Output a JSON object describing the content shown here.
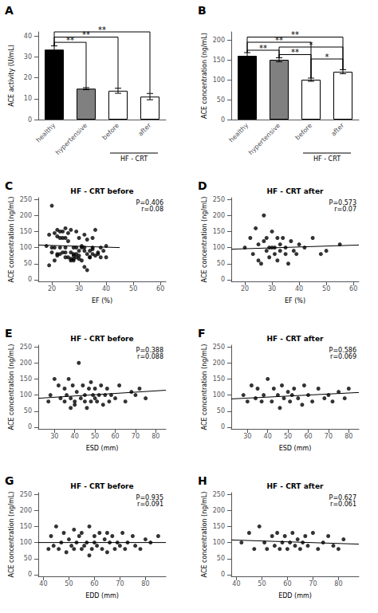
{
  "chart_data": [
    {
      "type": "bar",
      "categories": [
        "healthy",
        "hypertensive",
        "before",
        "after"
      ],
      "values": [
        33.5,
        14.8,
        13.8,
        11.0
      ],
      "errors": [
        1.8,
        0.5,
        1.2,
        1.5
      ],
      "colors": [
        "black",
        "#808080",
        "white",
        "white"
      ],
      "ylabel": "ACE activity (U/mL)",
      "ylim": [
        0,
        42
      ],
      "yticks": [
        0,
        10,
        20,
        30,
        40
      ],
      "grid": false,
      "annotations": [
        {
          "text": "A"
        },
        {
          "text": "HF - CRT",
          "from": "before",
          "to": "after"
        },
        {
          "text": "**",
          "from": "healthy",
          "to": "hypertensive",
          "y": 37
        },
        {
          "text": "**",
          "from": "healthy",
          "to": "before",
          "y": 39.5
        },
        {
          "text": "**",
          "from": "healthy",
          "to": "after",
          "y": 42
        }
      ]
    },
    {
      "type": "bar",
      "categories": [
        "healthy",
        "hypertensive",
        "before",
        "after"
      ],
      "values": [
        160,
        150,
        100,
        120
      ],
      "errors": [
        8,
        5,
        4,
        5
      ],
      "colors": [
        "black",
        "#808080",
        "white",
        "white"
      ],
      "ylabel": "ACE concentration (ng/mL)",
      "ylim": [
        0,
        220
      ],
      "yticks": [
        0,
        50,
        100,
        150,
        200
      ],
      "grid": false,
      "annotations": [
        {
          "text": "B"
        },
        {
          "text": "HF - CRT",
          "from": "before",
          "to": "after"
        },
        {
          "text": "*",
          "from": "before",
          "to": "after",
          "y": 152
        },
        {
          "text": "**",
          "from": "hypertensive",
          "to": "before",
          "y": 163
        },
        {
          "text": "**",
          "from": "healthy",
          "to": "hypertensive",
          "y": 174
        },
        {
          "text": "*",
          "from": "hypertensive",
          "to": "after",
          "y": 182
        },
        {
          "text": "**",
          "from": "healthy",
          "to": "before",
          "y": 194
        },
        {
          "text": "**",
          "from": "healthy",
          "to": "after",
          "y": 207
        }
      ]
    },
    {
      "type": "scatter",
      "title": "HF - CRT before",
      "xlabel": "EF (%)",
      "ylabel": "ACE concentration (ng/mL)",
      "xlim": [
        15,
        62
      ],
      "ylim": [
        -5,
        255
      ],
      "xticks": [
        20,
        30,
        40,
        50,
        60
      ],
      "yticks": [
        0,
        50,
        100,
        150,
        200,
        250
      ],
      "grid": false,
      "series": [
        {
          "type": "scatter",
          "color": "black",
          "x": [
            18,
            19,
            19,
            20,
            20,
            20,
            21,
            21,
            21,
            22,
            22,
            22,
            22,
            23,
            23,
            23,
            23,
            24,
            24,
            24,
            25,
            25,
            25,
            25,
            25,
            26,
            26,
            26,
            27,
            27,
            27,
            27,
            28,
            28,
            28,
            28,
            28,
            29,
            29,
            29,
            29,
            30,
            30,
            30,
            30,
            31,
            31,
            31,
            32,
            32,
            32,
            32,
            33,
            33,
            33,
            34,
            34,
            34,
            35,
            35,
            35,
            35,
            36,
            36,
            37,
            37,
            38,
            38,
            39,
            40,
            40
          ],
          "values": [
            105,
            45,
            140,
            100,
            85,
            230,
            100,
            60,
            145,
            135,
            155,
            80,
            75,
            80,
            150,
            130,
            100,
            85,
            150,
            130,
            70,
            130,
            100,
            160,
            85,
            70,
            120,
            145,
            85,
            60,
            65,
            155,
            60,
            65,
            75,
            100,
            80,
            70,
            80,
            100,
            150,
            90,
            130,
            65,
            75,
            100,
            105,
            60,
            40,
            90,
            100,
            140,
            30,
            80,
            125,
            90,
            70,
            70,
            80,
            95,
            130,
            100,
            75,
            155,
            80,
            85,
            100,
            70,
            90,
            105,
            70
          ]
        },
        {
          "type": "line",
          "color": "black",
          "x": [
            15,
            45
          ],
          "values": [
            108,
            100
          ]
        }
      ],
      "annotations": [
        {
          "text": "C"
        },
        {
          "text": "P=0.406"
        },
        {
          "text": "r=0.08"
        }
      ]
    },
    {
      "type": "scatter",
      "title": "HF - CRT after",
      "xlabel": "EF (%)",
      "ylabel": "ACE concentration (ng/mL)",
      "xlim": [
        15,
        62
      ],
      "ylim": [
        -5,
        255
      ],
      "xticks": [
        20,
        30,
        40,
        50,
        60
      ],
      "yticks": [
        0,
        50,
        100,
        150,
        200,
        250
      ],
      "grid": false,
      "series": [
        {
          "type": "scatter",
          "color": "black",
          "x": [
            20,
            22,
            23,
            24,
            25,
            25,
            26,
            27,
            27,
            28,
            28,
            29,
            29,
            30,
            30,
            31,
            31,
            32,
            32,
            33,
            33,
            34,
            35,
            35,
            36,
            37,
            38,
            39,
            40,
            42,
            45,
            48,
            50,
            55
          ],
          "values": [
            100,
            130,
            80,
            160,
            110,
            60,
            50,
            120,
            200,
            90,
            130,
            100,
            70,
            100,
            150,
            80,
            100,
            60,
            130,
            90,
            110,
            130,
            80,
            100,
            50,
            120,
            90,
            80,
            110,
            100,
            130,
            80,
            90,
            110
          ]
        },
        {
          "type": "line",
          "color": "black",
          "x": [
            15,
            62
          ],
          "values": [
            95,
            108
          ]
        }
      ],
      "annotations": [
        {
          "text": "D"
        },
        {
          "text": "P=0.573"
        },
        {
          "text": "r=0.07"
        }
      ]
    },
    {
      "type": "scatter",
      "title": "HF - CRT before",
      "xlabel": "ESD (mm)",
      "ylabel": "ACE concentration (ng/mL)",
      "xlim": [
        22,
        85
      ],
      "ylim": [
        -5,
        255
      ],
      "xticks": [
        30,
        40,
        50,
        60,
        70,
        80
      ],
      "yticks": [
        0,
        50,
        100,
        150,
        200,
        250
      ],
      "grid": false,
      "series": [
        {
          "type": "scatter",
          "color": "black",
          "x": [
            27,
            28,
            30,
            32,
            33,
            35,
            35,
            36,
            37,
            38,
            38,
            39,
            40,
            40,
            41,
            42,
            43,
            44,
            45,
            45,
            46,
            47,
            48,
            48,
            49,
            50,
            50,
            51,
            52,
            53,
            54,
            55,
            56,
            57,
            58,
            60,
            62,
            65,
            68,
            70,
            72,
            75
          ],
          "values": [
            80,
            100,
            150,
            130,
            90,
            80,
            120,
            100,
            150,
            60,
            90,
            130,
            80,
            70,
            110,
            200,
            90,
            130,
            80,
            100,
            60,
            120,
            80,
            140,
            100,
            90,
            120,
            80,
            100,
            130,
            70,
            100,
            120,
            80,
            100,
            90,
            130,
            80,
            110,
            100,
            120,
            90
          ]
        },
        {
          "type": "line",
          "color": "black",
          "x": [
            22,
            85
          ],
          "values": [
            90,
            115
          ]
        }
      ],
      "annotations": [
        {
          "text": "E"
        },
        {
          "text": "P=0.388"
        },
        {
          "text": "r=0.088"
        }
      ]
    },
    {
      "type": "scatter",
      "title": "HF - CRT after",
      "xlabel": "ESD (mm)",
      "ylabel": "ACE concentration (ng/mL)",
      "xlim": [
        22,
        85
      ],
      "ylim": [
        -5,
        255
      ],
      "xticks": [
        30,
        40,
        50,
        60,
        70,
        80
      ],
      "yticks": [
        0,
        50,
        100,
        150,
        200,
        250
      ],
      "grid": false,
      "series": [
        {
          "type": "scatter",
          "color": "black",
          "x": [
            28,
            30,
            32,
            34,
            35,
            37,
            38,
            40,
            42,
            43,
            45,
            46,
            47,
            48,
            50,
            51,
            52,
            53,
            55,
            57,
            58,
            60,
            62,
            65,
            68,
            70,
            72,
            75,
            78,
            80
          ],
          "values": [
            100,
            80,
            130,
            90,
            120,
            80,
            100,
            150,
            80,
            120,
            100,
            60,
            130,
            90,
            110,
            80,
            100,
            120,
            90,
            70,
            130,
            100,
            80,
            120,
            90,
            100,
            80,
            110,
            90,
            120
          ]
        },
        {
          "type": "line",
          "color": "black",
          "x": [
            22,
            85
          ],
          "values": [
            88,
            108
          ]
        }
      ],
      "annotations": [
        {
          "text": "F"
        },
        {
          "text": "P=0.586"
        },
        {
          "text": "r=0.069"
        }
      ]
    },
    {
      "type": "scatter",
      "title": "HF - CRT before",
      "xlabel": "EDD (mm)",
      "ylabel": "ACE concentration (ng/mL)",
      "xlim": [
        38,
        88
      ],
      "ylim": [
        -5,
        255
      ],
      "xticks": [
        40,
        50,
        60,
        70,
        80
      ],
      "yticks": [
        0,
        50,
        100,
        150,
        200,
        250
      ],
      "grid": false,
      "series": [
        {
          "type": "scatter",
          "color": "black",
          "x": [
            42,
            43,
            44,
            45,
            46,
            47,
            48,
            49,
            50,
            51,
            52,
            52,
            53,
            54,
            55,
            55,
            56,
            57,
            58,
            58,
            59,
            60,
            60,
            61,
            62,
            63,
            64,
            65,
            65,
            66,
            67,
            68,
            69,
            70,
            71,
            72,
            73,
            75,
            76,
            78,
            80,
            82,
            85
          ],
          "values": [
            80,
            120,
            90,
            150,
            80,
            100,
            130,
            70,
            110,
            90,
            140,
            80,
            100,
            120,
            80,
            130,
            90,
            100,
            60,
            150,
            80,
            120,
            100,
            90,
            130,
            80,
            110,
            70,
            130,
            100,
            120,
            80,
            100,
            90,
            130,
            80,
            100,
            120,
            90,
            80,
            110,
            100,
            120
          ]
        },
        {
          "type": "line",
          "color": "black",
          "x": [
            38,
            88
          ],
          "values": [
            100,
            100
          ]
        }
      ],
      "annotations": [
        {
          "text": "G"
        },
        {
          "text": "P=0.935"
        },
        {
          "text": "r=0.091"
        }
      ]
    },
    {
      "type": "scatter",
      "title": "HF - CRT after",
      "xlabel": "EDD (mm)",
      "ylabel": "ACE concentration (ng/mL)",
      "xlim": [
        38,
        88
      ],
      "ylim": [
        -5,
        255
      ],
      "xticks": [
        40,
        50,
        60,
        70,
        80
      ],
      "yticks": [
        0,
        50,
        100,
        150,
        200,
        250
      ],
      "grid": false,
      "series": [
        {
          "type": "scatter",
          "color": "black",
          "x": [
            42,
            45,
            47,
            49,
            51,
            52,
            54,
            55,
            56,
            57,
            58,
            59,
            60,
            61,
            62,
            63,
            64,
            65,
            66,
            67,
            68,
            70,
            72,
            74,
            76,
            78,
            80,
            82
          ],
          "values": [
            100,
            130,
            80,
            150,
            100,
            80,
            120,
            90,
            130,
            80,
            100,
            120,
            80,
            100,
            130,
            90,
            110,
            80,
            100,
            120,
            90,
            130,
            80,
            100,
            120,
            90,
            80,
            110
          ]
        },
        {
          "type": "line",
          "color": "black",
          "x": [
            38,
            88
          ],
          "values": [
            108,
            95
          ]
        }
      ],
      "annotations": [
        {
          "text": "H"
        },
        {
          "text": "P=0.627"
        },
        {
          "text": "r=0.061"
        }
      ]
    }
  ]
}
